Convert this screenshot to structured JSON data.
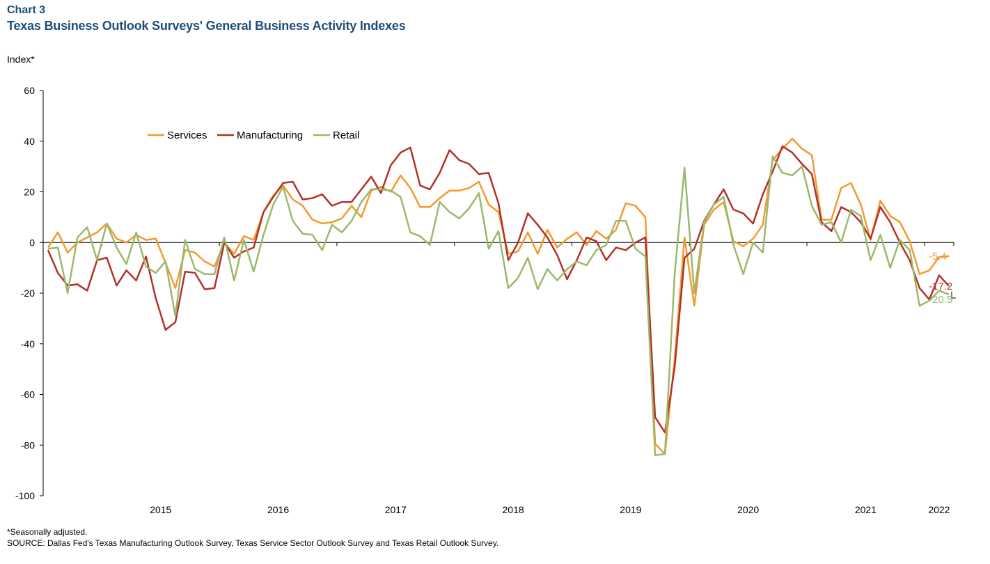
{
  "header": {
    "chart_label": "Chart 3",
    "title": "Texas Business Outlook Surveys' General Business Activity Indexes"
  },
  "footer": {
    "footnote": "*Seasonally adjusted.",
    "source": "SOURCE: Dallas Fed's Texas Manufacturing Outlook Survey, Texas Service Sector Outlook Survey and Texas Retail Outlook Survey."
  },
  "chart_data": {
    "type": "line",
    "ylabel": "Index*",
    "ylim": [
      -100,
      60
    ],
    "yticks": [
      60,
      40,
      20,
      0,
      -20,
      -40,
      -60,
      -80,
      -100
    ],
    "x_start": "2014-07",
    "x_end": "2022-03",
    "x_tick_labels": [
      "2015",
      "2016",
      "2017",
      "2018",
      "2019",
      "2020",
      "2021",
      "2022"
    ],
    "grid": false,
    "legend_position": "top-left",
    "series": [
      {
        "name": "Services",
        "color": "#f29a2e",
        "end_label": "-5.4",
        "values": [
          -2,
          4,
          -4,
          0,
          2,
          4,
          7.5,
          1.5,
          0,
          3,
          1,
          1.5,
          -8,
          -18,
          -3,
          -4,
          -7.5,
          -9.5,
          0,
          -4.5,
          2.5,
          1,
          12,
          18.5,
          22.5,
          17,
          14.5,
          9,
          7.5,
          8,
          9.5,
          14.5,
          10,
          20.5,
          22,
          20,
          26.5,
          21.5,
          14,
          14,
          17.5,
          20.5,
          20.5,
          21.5,
          24,
          15,
          12,
          -4.5,
          -3.5,
          4,
          -4.5,
          5,
          -2,
          1.5,
          4,
          -1,
          4.5,
          1.5,
          5,
          15.5,
          14.5,
          10,
          -79.5,
          -83.5,
          -45.5,
          2,
          -25,
          7,
          13,
          16,
          0.5,
          -1.5,
          1.5,
          7,
          32.5,
          37,
          41,
          37,
          34.5,
          9,
          9,
          21.5,
          23.5,
          15,
          1,
          16.5,
          10.5,
          8,
          0.5,
          -12.5,
          -11,
          -5.7,
          -5.4
        ]
      },
      {
        "name": "Manufacturing",
        "color": "#b5302a",
        "end_label": "-17.2",
        "values": [
          -3,
          -12,
          -17,
          -16.5,
          -19,
          -7,
          -6,
          -17,
          -11,
          -15,
          -5.5,
          -22,
          -34.5,
          -31.5,
          -11.5,
          -12,
          -18.5,
          -18,
          0,
          -6,
          -3.5,
          -2,
          12,
          18,
          23.5,
          24,
          17,
          17.5,
          19,
          14.5,
          16,
          16,
          21,
          26,
          19.5,
          30.5,
          35.5,
          37.5,
          22.5,
          21,
          27.5,
          36.5,
          32.5,
          31,
          27,
          27.5,
          15.5,
          -7,
          0,
          11.5,
          7,
          2,
          -5,
          -14.5,
          -7,
          2,
          0.5,
          -7,
          -2,
          -3,
          0,
          2,
          -69,
          -75,
          -49,
          -6,
          -2.5,
          8.5,
          15,
          21,
          13,
          11.5,
          7.5,
          19,
          28,
          38,
          35.5,
          31,
          27,
          8,
          4.5,
          14,
          12,
          8,
          1.5,
          14,
          8,
          0,
          -7,
          -18,
          -22.5,
          -13,
          -17.2
        ]
      },
      {
        "name": "Retail",
        "color": "#9ab96b",
        "end_label": "-20.5",
        "values": [
          -2.5,
          -2,
          -20,
          2,
          6,
          -7,
          7.5,
          -2,
          -8.5,
          4,
          -9.5,
          -12,
          -7.5,
          -29,
          1,
          -10.5,
          -12.5,
          -12.5,
          2,
          -15,
          1,
          -11.5,
          3,
          15,
          22,
          8.5,
          3.5,
          3,
          -3,
          7,
          4,
          8.5,
          16,
          21,
          21,
          20.5,
          18,
          4,
          2.5,
          -1,
          16,
          12,
          9.5,
          13.5,
          19.5,
          -2.5,
          4.5,
          -18,
          -14,
          -6,
          -18.5,
          -10.5,
          -15,
          -10.5,
          -7.5,
          -9,
          -3,
          -1,
          8.5,
          8.5,
          -2.5,
          -5.5,
          -84,
          -83.5,
          -12,
          29.5,
          -20,
          8,
          15,
          18,
          -1,
          -12.5,
          0,
          -4,
          34,
          27.5,
          26.5,
          30,
          14.5,
          7,
          8,
          0,
          13,
          10.5,
          -7,
          3,
          -10,
          1,
          -3,
          -25,
          -23,
          -19,
          -20.5
        ]
      }
    ]
  }
}
